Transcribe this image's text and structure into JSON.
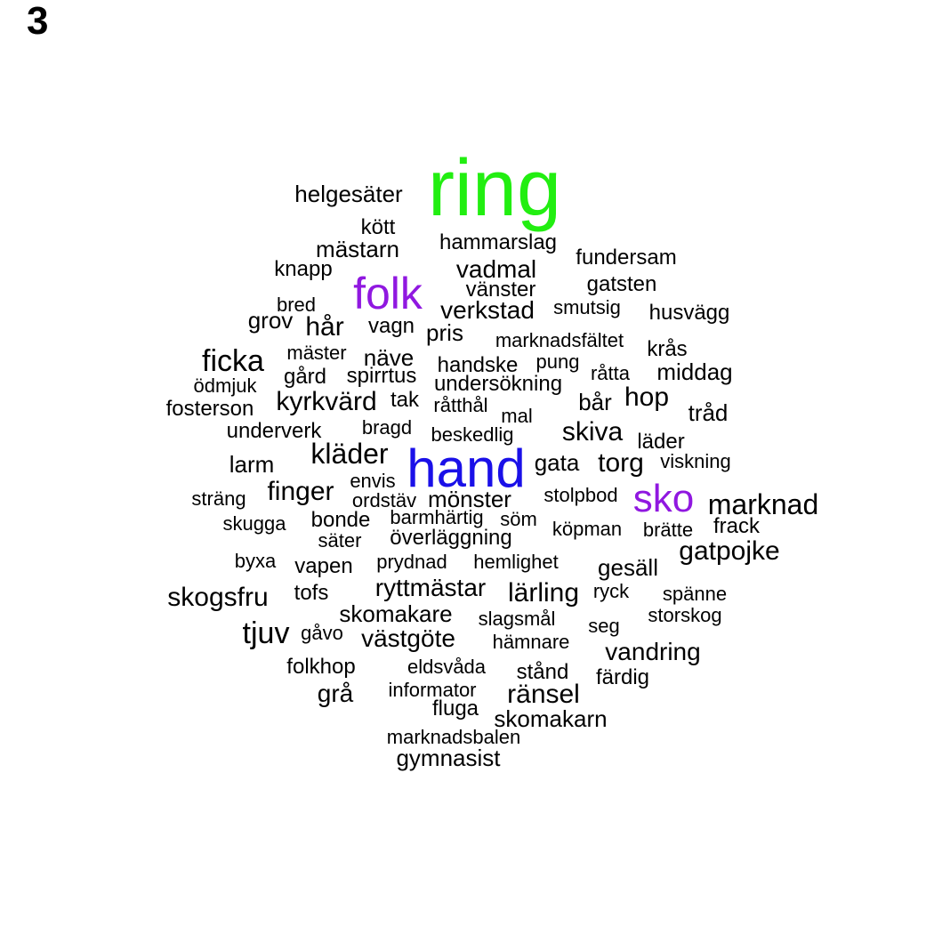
{
  "panel_label": "3",
  "colors": {
    "default": "#000000",
    "ring": "#22ee11",
    "hand": "#1a10e8",
    "purple": "#9018e0"
  },
  "words": [
    {
      "text": "ring",
      "color": "#22ee11",
      "weight": 10
    },
    {
      "text": "hand",
      "color": "#1a10e8",
      "weight": 7
    },
    {
      "text": "folk",
      "color": "#9018e0",
      "weight": 6
    },
    {
      "text": "sko",
      "color": "#9018e0",
      "weight": 6
    },
    {
      "text": "helgesäter"
    },
    {
      "text": "kött"
    },
    {
      "text": "mästarn"
    },
    {
      "text": "hammarslag"
    },
    {
      "text": "fundersam"
    },
    {
      "text": "knapp"
    },
    {
      "text": "vadmal"
    },
    {
      "text": "gatsten"
    },
    {
      "text": "vänster"
    },
    {
      "text": "bred"
    },
    {
      "text": "verkstad"
    },
    {
      "text": "smutsig"
    },
    {
      "text": "husvägg"
    },
    {
      "text": "grov"
    },
    {
      "text": "hår"
    },
    {
      "text": "vagn"
    },
    {
      "text": "pris"
    },
    {
      "text": "marknadsfältet"
    },
    {
      "text": "krås"
    },
    {
      "text": "ficka"
    },
    {
      "text": "mäster"
    },
    {
      "text": "näve"
    },
    {
      "text": "handske"
    },
    {
      "text": "pung"
    },
    {
      "text": "middag"
    },
    {
      "text": "gård"
    },
    {
      "text": "spirrtus"
    },
    {
      "text": "råtta"
    },
    {
      "text": "ödmjuk"
    },
    {
      "text": "undersökning"
    },
    {
      "text": "kyrkvärd"
    },
    {
      "text": "tak"
    },
    {
      "text": "bår"
    },
    {
      "text": "hop"
    },
    {
      "text": "fosterson"
    },
    {
      "text": "råtthål"
    },
    {
      "text": "tråd"
    },
    {
      "text": "mal"
    },
    {
      "text": "bragd"
    },
    {
      "text": "skiva"
    },
    {
      "text": "underverk"
    },
    {
      "text": "beskedlig"
    },
    {
      "text": "läder"
    },
    {
      "text": "kläder"
    },
    {
      "text": "larm"
    },
    {
      "text": "gata"
    },
    {
      "text": "torg"
    },
    {
      "text": "viskning"
    },
    {
      "text": "envis"
    },
    {
      "text": "finger"
    },
    {
      "text": "sträng"
    },
    {
      "text": "ordstäv"
    },
    {
      "text": "mönster"
    },
    {
      "text": "stolpbod"
    },
    {
      "text": "marknad"
    },
    {
      "text": "skugga"
    },
    {
      "text": "bonde"
    },
    {
      "text": "barmhärtig"
    },
    {
      "text": "söm"
    },
    {
      "text": "frack"
    },
    {
      "text": "köpman"
    },
    {
      "text": "brätte"
    },
    {
      "text": "säter"
    },
    {
      "text": "överläggning"
    },
    {
      "text": "gatpojke"
    },
    {
      "text": "byxa"
    },
    {
      "text": "prydnad"
    },
    {
      "text": "hemlighet"
    },
    {
      "text": "vapen"
    },
    {
      "text": "gesäll"
    },
    {
      "text": "ryttmästar"
    },
    {
      "text": "skogsfru"
    },
    {
      "text": "tofs"
    },
    {
      "text": "lärling"
    },
    {
      "text": "ryck"
    },
    {
      "text": "spänne"
    },
    {
      "text": "skomakare"
    },
    {
      "text": "storskog"
    },
    {
      "text": "slagsmål"
    },
    {
      "text": "tjuv"
    },
    {
      "text": "gåvo"
    },
    {
      "text": "västgöte"
    },
    {
      "text": "seg"
    },
    {
      "text": "hämnare"
    },
    {
      "text": "vandring"
    },
    {
      "text": "folkhop"
    },
    {
      "text": "eldsvåda"
    },
    {
      "text": "stånd"
    },
    {
      "text": "färdig"
    },
    {
      "text": "grå"
    },
    {
      "text": "informator"
    },
    {
      "text": "ränsel"
    },
    {
      "text": "fluga"
    },
    {
      "text": "skomakarn"
    },
    {
      "text": "marknadsbalen"
    },
    {
      "text": "gymnasist"
    }
  ]
}
